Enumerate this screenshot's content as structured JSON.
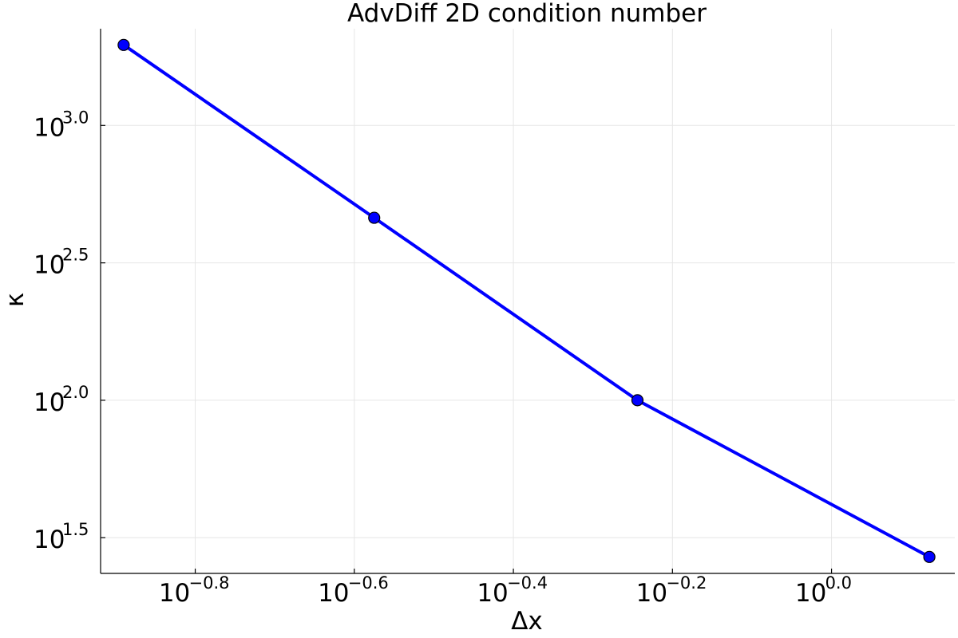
{
  "chart_data": {
    "type": "line",
    "title": "AdvDiff 2D condition number",
    "xlabel": "Δx",
    "ylabel": "κ",
    "xscale": "log10",
    "yscale": "log10",
    "x_tick_base": "10",
    "x_tick_exponents": [
      "−0.8",
      "−0.6",
      "−0.4",
      "−0.2",
      "0.0"
    ],
    "y_tick_base": "10",
    "y_tick_exponents": [
      "1.5",
      "2.0",
      "2.5",
      "3.0"
    ],
    "x_tick_log_values": [
      -0.8,
      -0.6,
      -0.4,
      -0.2,
      0.0
    ],
    "y_tick_log_values": [
      1.5,
      2.0,
      2.5,
      3.0
    ],
    "xlim_log10": [
      -0.919,
      0.155
    ],
    "ylim_log10": [
      1.37,
      3.352
    ],
    "grid": true,
    "legend": "none",
    "line_color": "#0000ff",
    "marker_color": "#0000ff",
    "series": [
      {
        "log10_x": [
          -0.89,
          -0.575,
          -0.244,
          0.123
        ],
        "log10_y": [
          3.293,
          2.664,
          2.0,
          1.43
        ],
        "x": [
          0.129,
          0.266,
          0.57,
          1.327
        ],
        "y": [
          1963,
          461,
          100,
          26.9
        ]
      }
    ]
  }
}
